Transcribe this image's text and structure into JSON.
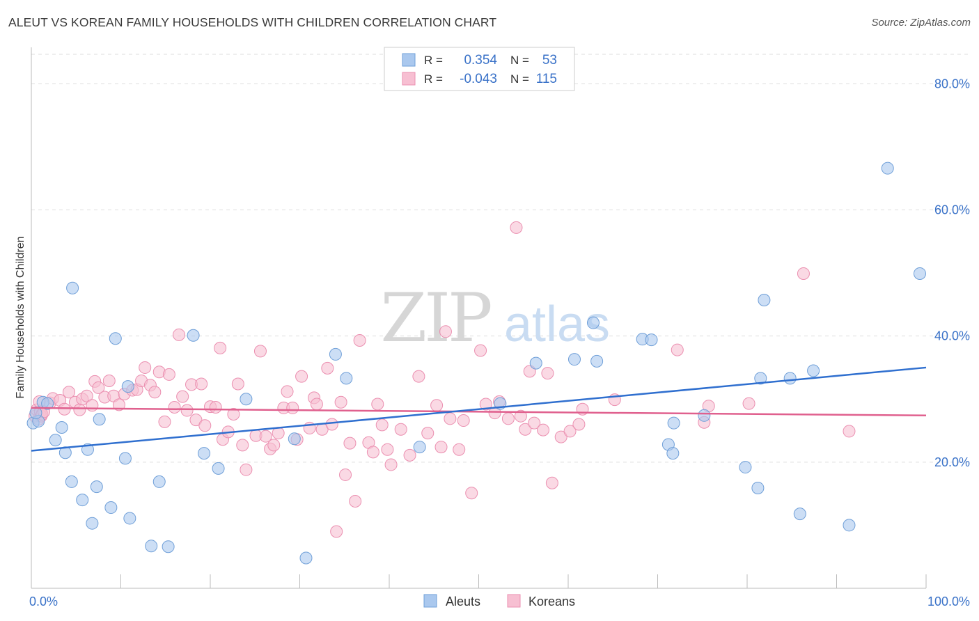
{
  "title": "ALEUT VS KOREAN FAMILY HOUSEHOLDS WITH CHILDREN CORRELATION CHART",
  "source": "Source: ZipAtlas.com",
  "watermark": {
    "zip": "ZIP",
    "atlas": "atlas"
  },
  "legend": {
    "rows": [
      {
        "r_label": "R =",
        "r_value": "0.354",
        "n_label": "N =",
        "n_value": "53"
      },
      {
        "r_label": "R =",
        "r_value": "-0.043",
        "n_label": "N =",
        "n_value": "115"
      }
    ]
  },
  "colors": {
    "aleut_fill": "#aac8ee",
    "aleut_stroke": "#6f9fd8",
    "aleut_line": "#2f6fcf",
    "korean_fill": "#f7bfd2",
    "korean_stroke": "#eb8fb0",
    "korean_line": "#e0608e",
    "value_text": "#3a72c8",
    "grid": "#dddddd"
  },
  "chart_data": {
    "type": "scatter",
    "title": "ALEUT VS KOREAN FAMILY HOUSEHOLDS WITH CHILDREN CORRELATION CHART",
    "xlabel": "",
    "ylabel": "Family Households with Children",
    "xlim": [
      0,
      100
    ],
    "ylim": [
      0,
      85
    ],
    "x_tick_labels": [
      "0.0%",
      "100.0%"
    ],
    "y_ticks": [
      20,
      40,
      60,
      80
    ],
    "y_tick_labels": [
      "20.0%",
      "40.0%",
      "60.0%",
      "80.0%"
    ],
    "grid": true,
    "legend_position": "top-center",
    "series": [
      {
        "name": "Aleuts",
        "r": 0.354,
        "n": 53,
        "trend": {
          "x": [
            0,
            100
          ],
          "y": [
            21.8,
            35.0
          ]
        },
        "points": [
          [
            0.2,
            26.2
          ],
          [
            0.8,
            26.5
          ],
          [
            1.3,
            29.5
          ],
          [
            1.8,
            29.3
          ],
          [
            2.7,
            23.5
          ],
          [
            3.4,
            25.5
          ],
          [
            3.8,
            21.5
          ],
          [
            4.5,
            16.9
          ],
          [
            4.6,
            47.6
          ],
          [
            5.7,
            14.0
          ],
          [
            6.3,
            22.0
          ],
          [
            6.8,
            10.3
          ],
          [
            7.3,
            16.1
          ],
          [
            7.6,
            26.8
          ],
          [
            8.9,
            12.8
          ],
          [
            9.4,
            39.6
          ],
          [
            10.5,
            20.6
          ],
          [
            10.8,
            32.0
          ],
          [
            11.0,
            11.1
          ],
          [
            13.4,
            6.7
          ],
          [
            14.3,
            16.9
          ],
          [
            15.3,
            6.6
          ],
          [
            18.1,
            40.1
          ],
          [
            19.3,
            21.4
          ],
          [
            20.9,
            19.0
          ],
          [
            24.0,
            30.0
          ],
          [
            29.4,
            23.7
          ],
          [
            30.7,
            4.8
          ],
          [
            34.0,
            37.1
          ],
          [
            35.2,
            33.3
          ],
          [
            43.4,
            22.4
          ],
          [
            52.4,
            29.3
          ],
          [
            56.4,
            35.7
          ],
          [
            60.7,
            36.3
          ],
          [
            62.8,
            42.1
          ],
          [
            63.2,
            36.0
          ],
          [
            68.3,
            39.5
          ],
          [
            69.3,
            39.4
          ],
          [
            71.2,
            22.8
          ],
          [
            71.7,
            21.4
          ],
          [
            71.8,
            26.2
          ],
          [
            75.2,
            27.4
          ],
          [
            79.8,
            19.2
          ],
          [
            81.2,
            15.9
          ],
          [
            81.5,
            33.3
          ],
          [
            81.9,
            45.7
          ],
          [
            84.8,
            33.3
          ],
          [
            85.9,
            11.8
          ],
          [
            87.4,
            34.5
          ],
          [
            91.4,
            10.0
          ],
          [
            95.7,
            66.6
          ],
          [
            99.3,
            49.9
          ],
          [
            0.5,
            27.8
          ]
        ]
      },
      {
        "name": "Koreans",
        "r": -0.043,
        "n": 115,
        "trend": {
          "x": [
            0,
            100
          ],
          "y": [
            28.6,
            27.4
          ]
        },
        "points": [
          [
            0.4,
            27.3
          ],
          [
            0.6,
            28.3
          ],
          [
            0.8,
            26.8
          ],
          [
            1.0,
            28.0
          ],
          [
            1.1,
            27.3
          ],
          [
            1.2,
            27.6
          ],
          [
            1.4,
            28.0
          ],
          [
            2.1,
            29.4
          ],
          [
            2.4,
            30.1
          ],
          [
            3.2,
            29.8
          ],
          [
            3.7,
            28.4
          ],
          [
            4.2,
            31.1
          ],
          [
            4.9,
            29.5
          ],
          [
            5.4,
            28.3
          ],
          [
            5.7,
            30.0
          ],
          [
            6.2,
            30.5
          ],
          [
            6.8,
            29.0
          ],
          [
            7.1,
            32.8
          ],
          [
            7.5,
            31.8
          ],
          [
            8.2,
            30.3
          ],
          [
            8.7,
            32.9
          ],
          [
            9.2,
            30.5
          ],
          [
            9.8,
            29.1
          ],
          [
            10.4,
            30.8
          ],
          [
            11.3,
            31.4
          ],
          [
            11.8,
            31.5
          ],
          [
            12.3,
            32.9
          ],
          [
            12.7,
            35.0
          ],
          [
            13.3,
            32.2
          ],
          [
            13.8,
            31.1
          ],
          [
            14.3,
            34.3
          ],
          [
            14.9,
            26.4
          ],
          [
            15.4,
            33.9
          ],
          [
            16.0,
            28.7
          ],
          [
            16.5,
            40.2
          ],
          [
            16.9,
            30.4
          ],
          [
            17.4,
            28.2
          ],
          [
            17.9,
            32.3
          ],
          [
            18.4,
            26.7
          ],
          [
            19.0,
            32.4
          ],
          [
            19.4,
            25.8
          ],
          [
            20.0,
            28.8
          ],
          [
            20.6,
            28.7
          ],
          [
            21.1,
            38.1
          ],
          [
            21.4,
            23.6
          ],
          [
            22.0,
            24.8
          ],
          [
            22.6,
            27.6
          ],
          [
            23.1,
            32.4
          ],
          [
            23.6,
            22.7
          ],
          [
            24.0,
            18.8
          ],
          [
            25.1,
            24.2
          ],
          [
            25.6,
            37.6
          ],
          [
            26.2,
            24.1
          ],
          [
            26.7,
            22.1
          ],
          [
            27.1,
            22.7
          ],
          [
            27.6,
            24.6
          ],
          [
            28.2,
            28.6
          ],
          [
            28.6,
            31.2
          ],
          [
            29.2,
            28.6
          ],
          [
            29.7,
            23.6
          ],
          [
            30.2,
            33.6
          ],
          [
            31.1,
            25.4
          ],
          [
            31.6,
            30.2
          ],
          [
            31.9,
            29.2
          ],
          [
            32.5,
            25.2
          ],
          [
            33.1,
            34.9
          ],
          [
            33.6,
            26.0
          ],
          [
            34.1,
            9.0
          ],
          [
            34.6,
            29.5
          ],
          [
            35.1,
            18.0
          ],
          [
            35.6,
            23.0
          ],
          [
            36.2,
            13.8
          ],
          [
            36.7,
            39.3
          ],
          [
            37.7,
            23.1
          ],
          [
            38.2,
            21.6
          ],
          [
            38.7,
            29.2
          ],
          [
            39.2,
            25.9
          ],
          [
            39.8,
            22.0
          ],
          [
            40.2,
            19.6
          ],
          [
            41.3,
            25.2
          ],
          [
            42.3,
            21.1
          ],
          [
            43.3,
            33.6
          ],
          [
            44.3,
            24.6
          ],
          [
            45.3,
            29.0
          ],
          [
            45.8,
            22.4
          ],
          [
            46.3,
            40.7
          ],
          [
            46.8,
            26.9
          ],
          [
            47.8,
            22.0
          ],
          [
            48.3,
            26.6
          ],
          [
            49.2,
            15.1
          ],
          [
            50.2,
            37.7
          ],
          [
            50.8,
            29.2
          ],
          [
            51.8,
            27.8
          ],
          [
            52.3,
            29.6
          ],
          [
            53.3,
            26.9
          ],
          [
            54.2,
            57.2
          ],
          [
            54.7,
            27.3
          ],
          [
            55.2,
            25.2
          ],
          [
            55.7,
            34.4
          ],
          [
            56.2,
            26.2
          ],
          [
            57.2,
            25.1
          ],
          [
            57.7,
            34.1
          ],
          [
            58.2,
            16.7
          ],
          [
            59.2,
            24.0
          ],
          [
            60.2,
            24.9
          ],
          [
            61.2,
            26.0
          ],
          [
            61.6,
            28.4
          ],
          [
            65.2,
            29.9
          ],
          [
            72.2,
            37.8
          ],
          [
            75.2,
            26.3
          ],
          [
            75.7,
            28.9
          ],
          [
            80.2,
            29.3
          ],
          [
            86.3,
            49.9
          ],
          [
            91.4,
            24.9
          ],
          [
            0.9,
            29.6
          ]
        ]
      }
    ]
  }
}
